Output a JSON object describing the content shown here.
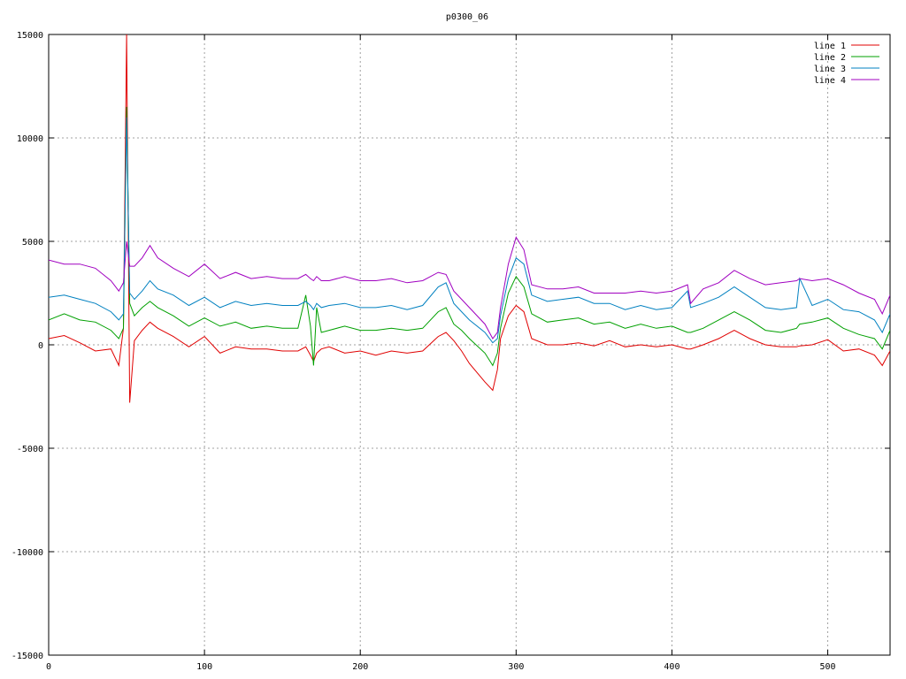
{
  "chart_data": {
    "type": "line",
    "title": "p0300_06",
    "xlabel": "",
    "ylabel": "",
    "xlim": [
      0,
      540
    ],
    "ylim": [
      -15000,
      15000
    ],
    "x_ticks": [
      0,
      100,
      200,
      300,
      400,
      500
    ],
    "y_ticks": [
      -15000,
      -10000,
      -5000,
      0,
      5000,
      10000,
      15000
    ],
    "grid": true,
    "legend_position": "top-right",
    "x": [
      0,
      10,
      20,
      30,
      40,
      45,
      48,
      50,
      52,
      55,
      60,
      65,
      70,
      80,
      90,
      100,
      110,
      120,
      130,
      140,
      150,
      160,
      165,
      168,
      170,
      172,
      175,
      180,
      190,
      200,
      210,
      220,
      230,
      240,
      250,
      255,
      260,
      265,
      270,
      280,
      285,
      288,
      290,
      295,
      300,
      305,
      310,
      320,
      330,
      340,
      350,
      360,
      370,
      380,
      390,
      400,
      410,
      412,
      420,
      430,
      440,
      450,
      460,
      470,
      480,
      482,
      490,
      500,
      510,
      520,
      530,
      535,
      540
    ],
    "series": [
      {
        "name": "line 1",
        "color": "#e00000",
        "values": [
          300,
          450,
          100,
          -300,
          -200,
          -1000,
          800,
          15000,
          -2800,
          200,
          700,
          1100,
          800,
          400,
          -100,
          400,
          -400,
          -100,
          -200,
          -200,
          -300,
          -300,
          -100,
          -500,
          -800,
          -400,
          -200,
          -100,
          -400,
          -300,
          -500,
          -300,
          -400,
          -300,
          400,
          600,
          200,
          -300,
          -900,
          -1800,
          -2200,
          -1200,
          300,
          1400,
          1900,
          1600,
          300,
          0,
          0,
          100,
          -50,
          200,
          -100,
          0,
          -100,
          0,
          -200,
          -200,
          0,
          300,
          700,
          300,
          0,
          -100,
          -100,
          -50,
          0,
          250,
          -300,
          -200,
          -500,
          -1000,
          -300
        ]
      },
      {
        "name": "line 2",
        "color": "#00a000",
        "values": [
          1200,
          1500,
          1200,
          1100,
          700,
          300,
          800,
          11500,
          2000,
          1400,
          1800,
          2100,
          1800,
          1400,
          900,
          1300,
          900,
          1100,
          800,
          900,
          800,
          800,
          2400,
          900,
          -1000,
          1800,
          600,
          700,
          900,
          700,
          700,
          800,
          700,
          800,
          1600,
          1800,
          1000,
          700,
          300,
          -400,
          -1000,
          -400,
          800,
          2500,
          3300,
          2800,
          1500,
          1100,
          1200,
          1300,
          1000,
          1100,
          800,
          1000,
          800,
          900,
          600,
          600,
          800,
          1200,
          1600,
          1200,
          700,
          600,
          800,
          1000,
          1100,
          1300,
          800,
          500,
          300,
          -200,
          700
        ]
      },
      {
        "name": "line 3",
        "color": "#0080c0",
        "values": [
          2300,
          2400,
          2200,
          2000,
          1600,
          1200,
          1500,
          11000,
          2500,
          2200,
          2600,
          3100,
          2700,
          2400,
          1900,
          2300,
          1800,
          2100,
          1900,
          2000,
          1900,
          1900,
          2100,
          1900,
          1700,
          2000,
          1800,
          1900,
          2000,
          1800,
          1800,
          1900,
          1700,
          1900,
          2800,
          3000,
          2000,
          1600,
          1200,
          600,
          100,
          300,
          1400,
          3200,
          4200,
          3900,
          2400,
          2100,
          2200,
          2300,
          2000,
          2000,
          1700,
          1900,
          1700,
          1800,
          2600,
          1800,
          2000,
          2300,
          2800,
          2300,
          1800,
          1700,
          1800,
          3200,
          1900,
          2200,
          1700,
          1600,
          1200,
          600,
          1500
        ]
      },
      {
        "name": "line 4",
        "color": "#a000c0",
        "values": [
          4100,
          3900,
          3900,
          3700,
          3100,
          2600,
          3000,
          5000,
          3800,
          3800,
          4200,
          4800,
          4200,
          3700,
          3300,
          3900,
          3200,
          3500,
          3200,
          3300,
          3200,
          3200,
          3400,
          3200,
          3100,
          3300,
          3100,
          3100,
          3300,
          3100,
          3100,
          3200,
          3000,
          3100,
          3500,
          3400,
          2600,
          2200,
          1800,
          1000,
          300,
          600,
          1800,
          3900,
          5200,
          4600,
          2900,
          2700,
          2700,
          2800,
          2500,
          2500,
          2500,
          2600,
          2500,
          2600,
          2900,
          2000,
          2700,
          3000,
          3600,
          3200,
          2900,
          3000,
          3100,
          3200,
          3100,
          3200,
          2900,
          2500,
          2200,
          1500,
          2400
        ]
      }
    ]
  }
}
